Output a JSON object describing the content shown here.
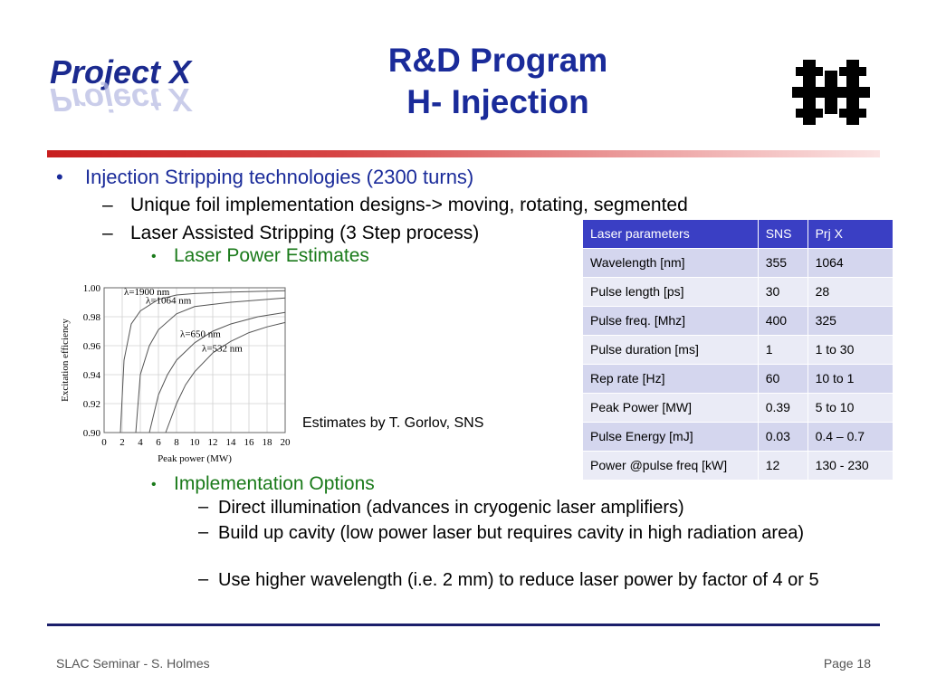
{
  "logo": {
    "text": "Project X"
  },
  "title": {
    "line1": "R&D Program",
    "line2": "H- Injection"
  },
  "icons": {
    "lab_logo": "fermilab-logo-icon"
  },
  "bullets": {
    "main": "Injection Stripping technologies (2300 turns)",
    "sub1": "Unique foil implementation designs-> moving, rotating, segmented",
    "sub2": "Laser Assisted Stripping (3 Step process)",
    "laser_power": "Laser Power Estimates",
    "impl_options": "Implementation Options",
    "opt1": "Direct illumination (advances in cryogenic laser amplifiers)",
    "opt2": "Build up cavity (low power laser but requires cavity in high radiation area)",
    "opt3": "Use higher wavelength (i.e. 2 mm) to reduce laser power by factor of 4 or 5"
  },
  "caption": "Estimates by T. Gorlov, SNS",
  "table": {
    "headers": [
      "Laser parameters",
      "SNS",
      "Prj X"
    ],
    "rows": [
      [
        "Wavelength [nm]",
        "355",
        "1064"
      ],
      [
        "Pulse length [ps]",
        "30",
        "28"
      ],
      [
        "Pulse freq. [Mhz]",
        "400",
        "325"
      ],
      [
        "Pulse duration [ms]",
        "1",
        "1 to 30"
      ],
      [
        "Rep rate [Hz]",
        "60",
        "10 to 1"
      ],
      [
        "Peak  Power [MW]",
        "0.39",
        "5 to 10"
      ],
      [
        "Pulse Energy [mJ]",
        "0.03",
        "0.4 – 0.7"
      ],
      [
        "Power @pulse freq [kW]",
        "12",
        "130 - 230"
      ]
    ]
  },
  "chart_data": {
    "type": "line",
    "xlabel": "Peak power (MW)",
    "ylabel": "Excitation efficiency",
    "xlim": [
      0,
      20
    ],
    "ylim": [
      0.9,
      1.0
    ],
    "xticks": [
      "0",
      "2",
      "4",
      "6",
      "8",
      "10",
      "12",
      "14",
      "16",
      "18",
      "20"
    ],
    "yticks": [
      "0.90",
      "0.92",
      "0.94",
      "0.96",
      "0.98",
      "1.00"
    ],
    "grid": true,
    "series": [
      {
        "name": "λ=1900 nm",
        "x": [
          1.8,
          2.2,
          3,
          4,
          6,
          8,
          10,
          14,
          20
        ],
        "y": [
          0.9,
          0.95,
          0.975,
          0.984,
          0.992,
          0.995,
          0.996,
          0.997,
          0.998
        ]
      },
      {
        "name": "λ=1064 nm",
        "x": [
          3.5,
          4.0,
          5,
          6,
          8,
          10,
          14,
          20
        ],
        "y": [
          0.9,
          0.94,
          0.96,
          0.971,
          0.982,
          0.987,
          0.99,
          0.993
        ]
      },
      {
        "name": "λ=650 nm",
        "x": [
          5.0,
          6,
          7,
          8,
          10,
          12,
          14,
          17,
          20
        ],
        "y": [
          0.9,
          0.926,
          0.94,
          0.95,
          0.962,
          0.97,
          0.975,
          0.98,
          0.983
        ]
      },
      {
        "name": "λ=532 nm",
        "x": [
          6.8,
          8,
          9,
          10,
          12,
          14,
          16,
          18,
          20
        ],
        "y": [
          0.9,
          0.92,
          0.933,
          0.942,
          0.955,
          0.963,
          0.969,
          0.973,
          0.976
        ]
      }
    ]
  },
  "footer": {
    "left": "SLAC Seminar - S. Holmes",
    "right": "Page 18"
  }
}
